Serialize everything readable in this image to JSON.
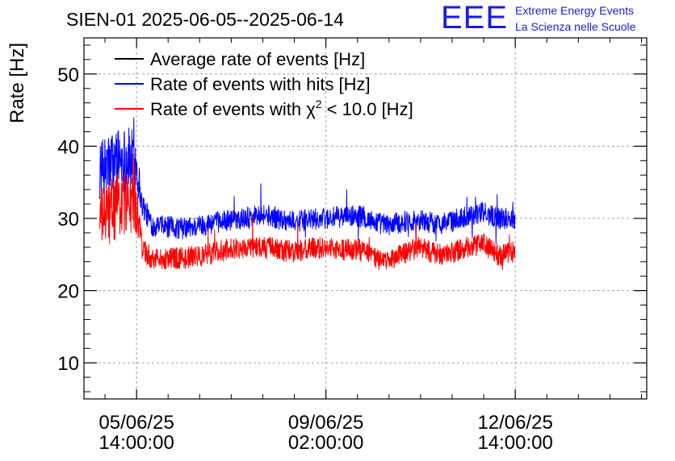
{
  "logo": {
    "mark": "EEE",
    "line1": "Extreme Energy Events",
    "line2": "La Scienza nelle Scuole"
  },
  "colors": {
    "average": "#000000",
    "hits": "#0000ff",
    "chi2": "#ff0000",
    "grid": "#a0a0a0",
    "axis": "#000000"
  },
  "chart_data": {
    "type": "line",
    "title": "SIEN-01 2025-06-05--2025-06-14",
    "ylabel": "Rate [Hz]",
    "xlabel": "",
    "ylim": [
      5,
      55
    ],
    "y_ticks": [
      10,
      20,
      30,
      40,
      50
    ],
    "x_unit": "hours since 05/06/25 14:00:00",
    "xlim": [
      -10,
      97
    ],
    "x_ticks": [
      {
        "x": 0,
        "label_date": "05/06/25",
        "label_time": "14:00:00"
      },
      {
        "x": 36,
        "label_date": "09/06/25",
        "label_time": "02:00:00"
      },
      {
        "x": 72,
        "label_date": "12/06/25",
        "label_time": "14:00:00"
      }
    ],
    "grid": true,
    "legend_position": "top-left",
    "legend": [
      {
        "name": "Average rate of events [Hz]",
        "key": "average"
      },
      {
        "name": "Rate of events with hits [Hz]",
        "key": "hits"
      },
      {
        "name": "Rate of events with χ² < 10.0 [Hz]",
        "key": "chi2",
        "text_main": "Rate of events with χ",
        "sup": "2",
        "text_tail": " < 10.0 [Hz]"
      }
    ],
    "series": [
      {
        "name": "Rate of events with hits [Hz]",
        "key": "hits",
        "x": [
          -7.0,
          -5.0,
          -3.0,
          -1.0,
          0.0,
          1.0,
          3.0,
          6.0,
          9.0,
          12.0,
          15.0,
          18.0,
          21.0,
          24.0,
          27.0,
          30.0,
          33.0,
          36.0,
          39.0,
          42.0,
          45.0,
          48.0,
          51.0,
          54.0,
          57.0,
          60.0,
          63.0,
          66.0,
          69.0,
          72.0
        ],
        "values": [
          36.5,
          37.5,
          38.5,
          38.0,
          37.5,
          32.0,
          29.0,
          28.8,
          28.6,
          29.0,
          29.4,
          29.8,
          30.2,
          30.6,
          30.0,
          29.6,
          29.8,
          30.0,
          30.2,
          30.4,
          29.6,
          29.0,
          29.6,
          29.8,
          29.2,
          29.6,
          30.4,
          30.8,
          30.0,
          30.0
        ],
        "spread": [
          4.0,
          4.5,
          4.5,
          4.5,
          4.0,
          1.8,
          1.5,
          1.5,
          1.5,
          1.5,
          1.5,
          1.5,
          1.5,
          1.5,
          1.5,
          1.5,
          1.5,
          1.5,
          1.5,
          1.5,
          1.5,
          1.5,
          1.5,
          1.5,
          1.5,
          1.5,
          1.5,
          1.5,
          1.5,
          1.5
        ]
      },
      {
        "name": "Rate of events with χ² < 10.0 [Hz]",
        "key": "chi2",
        "x": [
          -7.0,
          -5.0,
          -3.0,
          -1.0,
          0.0,
          1.0,
          3.0,
          6.0,
          9.0,
          12.0,
          15.0,
          18.0,
          21.0,
          24.0,
          27.0,
          30.0,
          33.0,
          36.0,
          39.0,
          42.0,
          45.0,
          48.0,
          51.0,
          54.0,
          57.0,
          60.0,
          63.0,
          66.0,
          69.0,
          72.0
        ],
        "values": [
          30.0,
          31.0,
          32.0,
          32.0,
          31.0,
          26.0,
          24.5,
          24.5,
          24.5,
          24.8,
          25.3,
          25.8,
          26.0,
          26.2,
          25.6,
          25.4,
          25.8,
          26.0,
          25.6,
          25.8,
          24.6,
          24.0,
          25.2,
          26.0,
          25.0,
          25.2,
          26.0,
          26.4,
          24.8,
          25.4
        ],
        "spread": [
          4.0,
          4.5,
          4.5,
          4.5,
          4.0,
          1.8,
          1.6,
          1.5,
          1.5,
          1.5,
          1.5,
          1.5,
          1.5,
          1.5,
          1.5,
          1.5,
          1.5,
          1.5,
          1.5,
          1.5,
          1.5,
          1.5,
          1.5,
          1.5,
          1.5,
          1.5,
          1.5,
          1.5,
          1.5,
          1.5
        ]
      }
    ]
  }
}
